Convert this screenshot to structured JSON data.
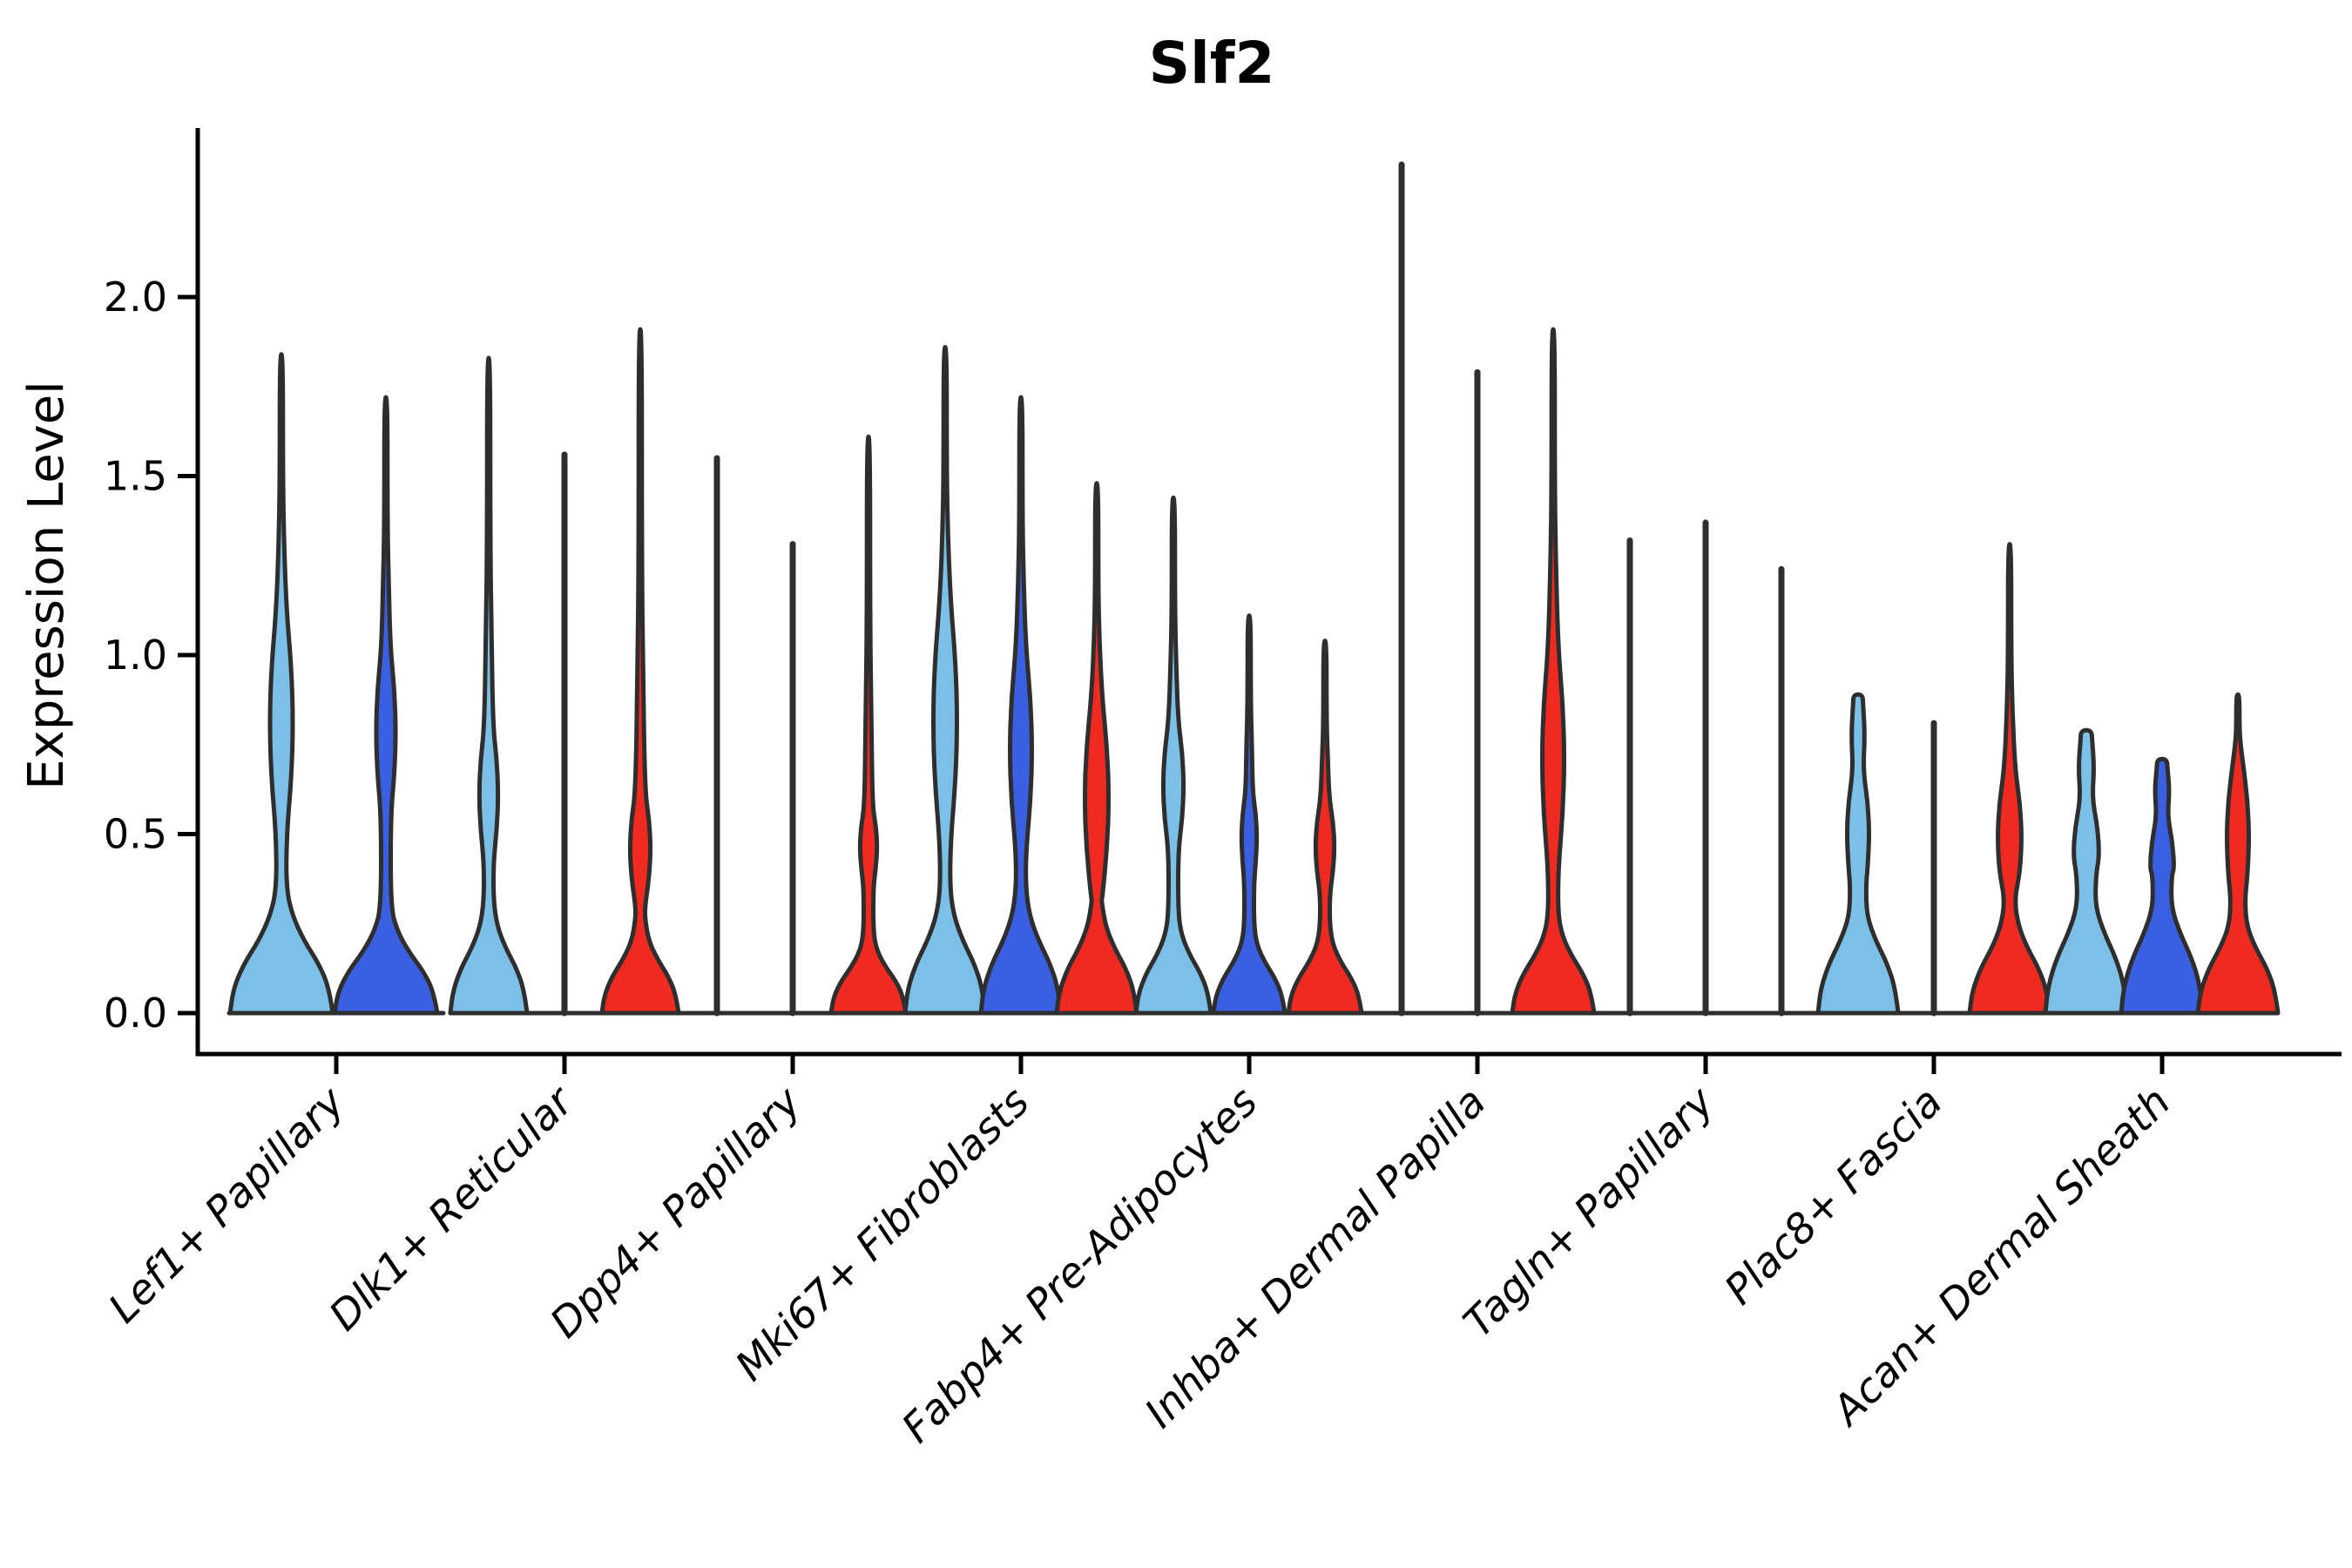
{
  "title": "Slf2",
  "axes": {
    "ylabel": "Expression Level",
    "yticks": [
      {
        "label": "0.0",
        "value": 0.0
      },
      {
        "label": "0.5",
        "value": 0.5
      },
      {
        "label": "1.0",
        "value": 1.0
      },
      {
        "label": "1.5",
        "value": 1.5
      },
      {
        "label": "2.0",
        "value": 2.0
      }
    ]
  },
  "colors": {
    "light_blue": "#7CC0E8",
    "dark_blue": "#3A5FE0",
    "red": "#EE2A21",
    "outline": "#2E2E2E",
    "axis": "#000000"
  },
  "chart_data": {
    "type": "violin",
    "title": "Slf2",
    "ylabel": "Expression Level",
    "ylim": [
      -0.11,
      2.47
    ],
    "grid": false,
    "legend": "none",
    "categories": [
      "Lef1+ Papillary",
      "Dlk1+ Reticular",
      "Dpp4+ Papillary",
      "Mki67+ Fibroblasts",
      "Fabp4+ Pre-Adipocytes",
      "Inhba+ Dermal Papilla",
      "Tagln+ Papillary",
      "Plac8+ Fascia",
      "Acan+ Dermal Sheath"
    ],
    "groups": [
      {
        "category": "Lef1+ Papillary",
        "base_half": 123,
        "violins": [
          {
            "series": "light_blue",
            "offset": -63,
            "shape": "spindle",
            "max": 1.84,
            "base_hw": 59,
            "base_peak": 0.2,
            "belly": [
              0.5,
              1.12
            ],
            "belly_hw": 13.5
          },
          {
            "series": "dark_blue",
            "offset": 57,
            "shape": "spindle",
            "max": 1.72,
            "base_hw": 59,
            "base_peak": 0.17,
            "belly": [
              0.55,
              1.02
            ],
            "belly_hw": 11.5
          }
        ]
      },
      {
        "category": "Dlk1+ Reticular",
        "base_half": 131,
        "violins": [
          {
            "series": "light_blue",
            "offset": -87,
            "shape": "spindle",
            "max": 1.83,
            "base_hw": 44,
            "base_peak": 0.18,
            "belly": [
              0.42,
              0.8
            ],
            "belly_hw": 11
          },
          {
            "series": "dark_blue",
            "offset": 0,
            "shape": "line",
            "max": 1.56
          },
          {
            "series": "red",
            "offset": 87,
            "shape": "spindle",
            "max": 1.91,
            "base_hw": 44,
            "base_peak": 0.15,
            "belly": [
              0.3,
              0.62
            ],
            "belly_hw": 12
          }
        ]
      },
      {
        "category": "Dpp4+ Papillary",
        "base_half": 131,
        "violins": [
          {
            "series": "light_blue",
            "offset": -87,
            "shape": "line",
            "max": 1.55
          },
          {
            "series": "dark_blue",
            "offset": 0,
            "shape": "line",
            "max": 1.31
          },
          {
            "series": "red",
            "offset": 87,
            "shape": "spindle",
            "max": 1.61,
            "base_hw": 43,
            "base_peak": 0.13,
            "belly": [
              0.35,
              0.58
            ],
            "belly_hw": 10
          }
        ]
      },
      {
        "category": "Mki67+ Fibroblasts",
        "base_half": 131,
        "violins": [
          {
            "series": "light_blue",
            "offset": -87,
            "shape": "spindle",
            "max": 1.86,
            "base_hw": 46,
            "base_peak": 0.2,
            "belly": [
              0.48,
              1.15
            ],
            "belly_hw": 14
          },
          {
            "series": "dark_blue",
            "offset": 0,
            "shape": "spindle",
            "max": 1.72,
            "base_hw": 46,
            "base_peak": 0.2,
            "belly": [
              0.45,
              1.02
            ],
            "belly_hw": 13
          },
          {
            "series": "red",
            "offset": 87,
            "shape": "spindle",
            "max": 1.48,
            "base_hw": 46,
            "base_peak": 0.18,
            "belly": [
              0.32,
              0.88
            ],
            "belly_hw": 14
          }
        ]
      },
      {
        "category": "Fabp4+ Pre-Adipocytes",
        "base_half": 131,
        "violins": [
          {
            "series": "light_blue",
            "offset": -87,
            "shape": "spindle",
            "max": 1.44,
            "base_hw": 43,
            "base_peak": 0.16,
            "belly": [
              0.45,
              0.82
            ],
            "belly_hw": 12
          },
          {
            "series": "dark_blue",
            "offset": 0,
            "shape": "spindle",
            "max": 1.11,
            "base_hw": 41,
            "base_peak": 0.14,
            "belly": [
              0.36,
              0.62
            ],
            "belly_hw": 9
          },
          {
            "series": "red",
            "offset": 87,
            "shape": "spindle",
            "max": 1.04,
            "base_hw": 42,
            "base_peak": 0.14,
            "belly": [
              0.33,
              0.6
            ],
            "belly_hw": 11
          }
        ]
      },
      {
        "category": "Inhba+ Dermal Papilla",
        "base_half": 131,
        "violins": [
          {
            "series": "light_blue",
            "offset": -87,
            "shape": "line",
            "max": 2.37
          },
          {
            "series": "dark_blue",
            "offset": 0,
            "shape": "line",
            "max": 1.79
          },
          {
            "series": "red",
            "offset": 87,
            "shape": "spindle",
            "max": 1.91,
            "base_hw": 47,
            "base_peak": 0.16,
            "belly": [
              0.4,
              1.02
            ],
            "belly_hw": 13
          }
        ]
      },
      {
        "category": "Tagln+ Papillary",
        "base_half": 131,
        "violins": [
          {
            "series": "light_blue",
            "offset": -87,
            "shape": "line",
            "max": 1.32
          },
          {
            "series": "dark_blue",
            "offset": 0,
            "shape": "line",
            "max": 1.37
          },
          {
            "series": "red",
            "offset": 87,
            "shape": "line",
            "max": 1.24
          }
        ]
      },
      {
        "category": "Plac8+ Fascia",
        "base_half": 131,
        "violins": [
          {
            "series": "light_blue",
            "offset": -87,
            "shape": "column",
            "max": 0.89,
            "base_hw": 46,
            "base_peak": 0.2,
            "belly": [
              0.32,
              0.68
            ],
            "belly_hw": 13,
            "waist_hw": 9
          },
          {
            "series": "dark_blue",
            "offset": 0,
            "shape": "line",
            "max": 0.81
          },
          {
            "series": "red",
            "offset": 87,
            "shape": "spindle",
            "max": 1.31,
            "base_hw": 46,
            "base_peak": 0.18,
            "belly": [
              0.3,
              0.68
            ],
            "belly_hw": 14
          }
        ]
      },
      {
        "category": "Acan+ Dermal Sheath",
        "base_half": 131,
        "violins": [
          {
            "series": "light_blue",
            "offset": -87,
            "shape": "column",
            "max": 0.79,
            "base_hw": 47,
            "base_peak": 0.22,
            "belly": [
              0.28,
              0.6
            ],
            "belly_hw": 15,
            "waist_hw": 11
          },
          {
            "series": "dark_blue",
            "offset": 0,
            "shape": "column",
            "max": 0.71,
            "base_hw": 47,
            "base_peak": 0.22,
            "belly": [
              0.26,
              0.55
            ],
            "belly_hw": 14,
            "waist_hw": 11
          },
          {
            "series": "red",
            "offset": 87,
            "shape": "spindle",
            "max": 0.89,
            "base_hw": 46,
            "base_peak": 0.18,
            "belly": [
              0.28,
              0.7
            ],
            "belly_hw": 13,
            "waist_hw": 8
          }
        ]
      }
    ]
  }
}
